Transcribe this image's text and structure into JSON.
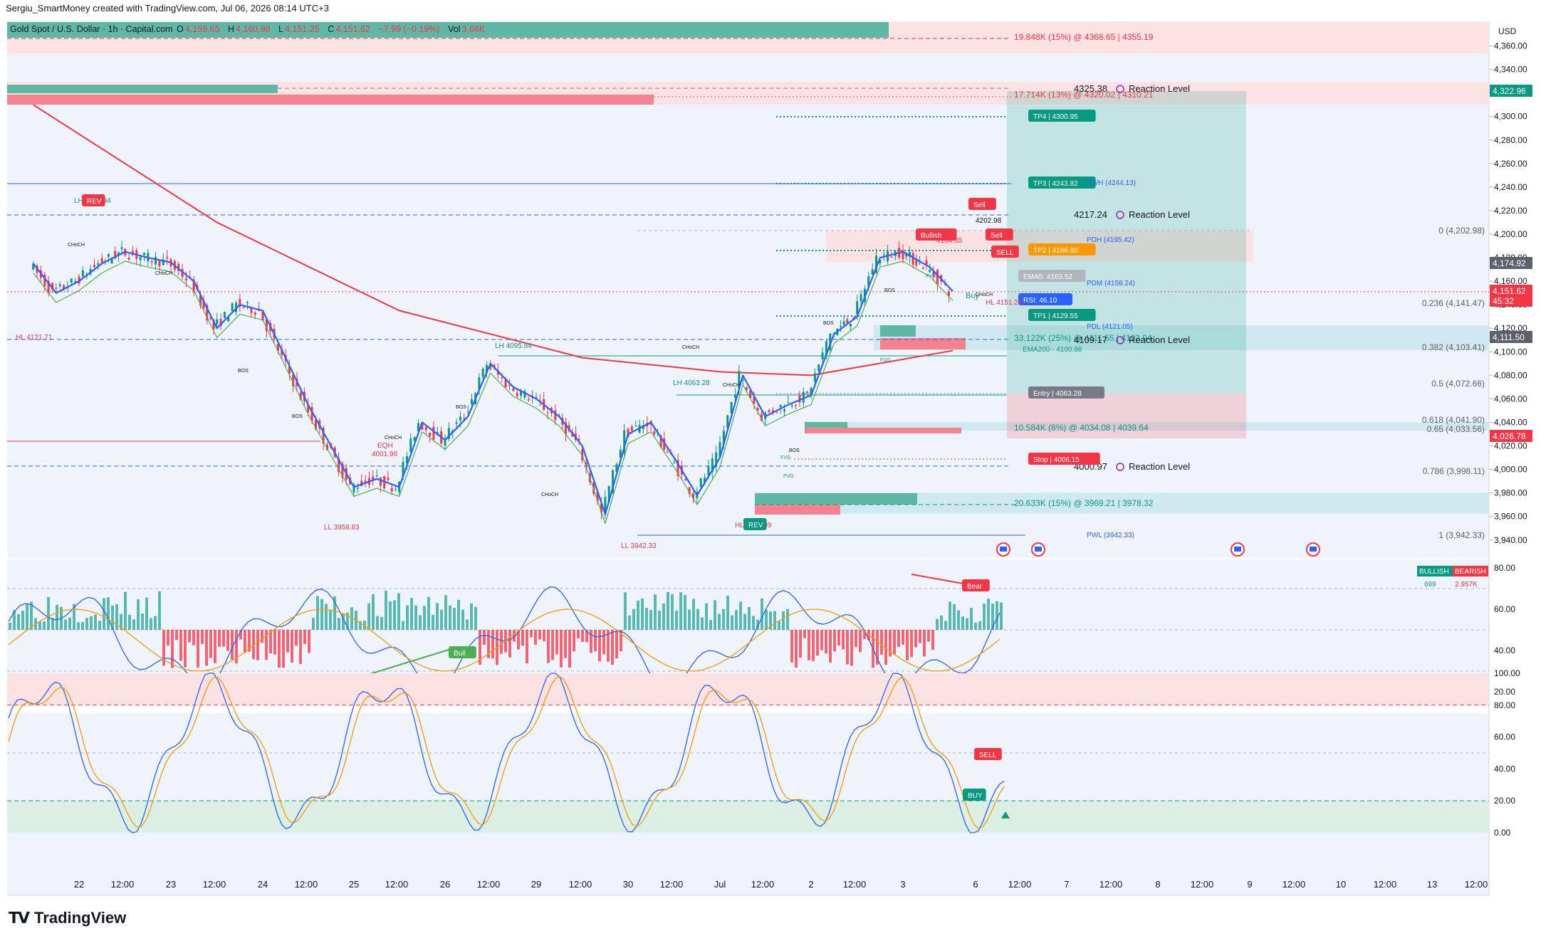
{
  "header": {
    "credit": "Sergiu_SmartMoney created with TradingView.com, Jul 06, 2026 08:14 UTC+3",
    "symbol": "Gold Spot / U.S. Dollar · 1h · Capital.com",
    "open_label": "O",
    "open": "4,159.65",
    "high_label": "H",
    "high": "4,160.98",
    "low_label": "L",
    "low": "4,151.25",
    "close_label": "C",
    "close": "4,151.62",
    "change": "−7.99 (−0.19%)",
    "vol_label": "Vol",
    "vol": "3.66K"
  },
  "brand": {
    "name": "TradingView",
    "logo": "TV"
  },
  "price_axis": {
    "currency": "USD",
    "ticks": [
      "4,360.00",
      "4,340.00",
      "4,320.00",
      "4,300.00",
      "4,280.00",
      "4,260.00",
      "4,240.00",
      "4,220.00",
      "4,200.00",
      "4,180.00",
      "4,160.00",
      "4,140.00",
      "4,120.00",
      "4,100.00",
      "4,080.00",
      "4,060.00",
      "4,040.00",
      "4,020.00",
      "4,000.00",
      "3,980.00",
      "3,960.00",
      "3,940.00"
    ],
    "tags": [
      {
        "label": "4,322.96",
        "color": "#089981"
      },
      {
        "label": "4,174.92",
        "color": "#5d606b"
      },
      {
        "label": "4,151.62",
        "color": "#f23645"
      },
      {
        "label": "45:32",
        "color": "#f23645"
      },
      {
        "label": "4,111.50",
        "color": "#5d606b"
      },
      {
        "label": "4,026.78",
        "color": "#f23645"
      }
    ]
  },
  "time_axis": [
    "22",
    "12:00",
    "23",
    "12:00",
    "24",
    "12:00",
    "25",
    "12:00",
    "26",
    "12:00",
    "29",
    "12:00",
    "30",
    "12:00",
    "Jul",
    "12:00",
    "2",
    "12:00",
    "3",
    "6",
    "12:00",
    "7",
    "12:00",
    "8",
    "12:00",
    "9",
    "12:00",
    "10",
    "12:00",
    "13",
    "12:00"
  ],
  "levels": {
    "volume_zone_top": "19.848K (15%) @ 4368.65 | 4355.19",
    "volume_zone_2": "17.714K (13%) @ 4320.02 | 4310.21",
    "volume_zone_3": "33.122K (25%) @ 4111.55 | 4123.94",
    "volume_zone_4": "10.584K (8%) @ 4034.08 | 4039.64",
    "volume_zone_5": "20.633K (15%) @ 3969.21 | 3978.32",
    "reaction_1": "4325.38",
    "reaction_2": "4217.24",
    "reaction_3": "4109.17",
    "reaction_4": "4000.97",
    "reaction_label": "Reaction Level",
    "tp4": "TP4 | 4300.95",
    "tp3": "TP3 | 4243.82",
    "tp2": "TP2 | 4186.80",
    "tp1": "TP1 | 4129.55",
    "entry": "Entry | 4063.28",
    "stop": "Stop | 4006.15",
    "pwh": "PWH (4244.13)",
    "pdh": "PDH (4195.42)",
    "pdm": "PDM (4158.24)",
    "pdl": "PDL (4121.05)",
    "pwl": "PWL (3942.33)",
    "ema5": "EMA5: 4163.52",
    "ema200": "EMA200 - 4100.98",
    "rsi": "RSI: 46.10",
    "fib": [
      "0 (4,202.98)",
      "0.236 (4,141.47)",
      "0.382 (4,103.41)",
      "0.5 (4,072.66)",
      "0.618 (4,041.90)",
      "0.65 (4,033.56)",
      "0.786 (3,998.11)",
      "1 (3,942.33)"
    ]
  },
  "annotations": {
    "lh_top": "LH 4183.94",
    "hl_left": "HL 4121.71",
    "eqh_left": "EQH",
    "eqh_left_val": "4001.96",
    "ll_1": "LL 3958.83",
    "lh_mid": "LH 4095.84",
    "ll_2": "LL 3942.33",
    "lh_2": "LH 4063.28",
    "hl_bot": "HL 3969.09",
    "hl_right": "HL 4151.29",
    "eqh_right": "EQH",
    "eqh_right_val": "4184.35",
    "high_right": "4202.98",
    "sell": "Sell",
    "sell_big": "SELL",
    "buy": "Buy",
    "bullish": "Bullish",
    "rev": "REV",
    "choch": "CHoCH",
    "bos": "BOS",
    "fvg": "FVG"
  },
  "osc1": {
    "ticks": [
      "80.00",
      "60.00",
      "40.00",
      "20.00"
    ],
    "legend_bull": "BULLISH",
    "legend_bear": "BEARISH",
    "bull_val": "699",
    "bear_val": "2.957K",
    "bull_tag": "Bull",
    "bear_tag": "Bear"
  },
  "osc2": {
    "ticks": [
      "100.00",
      "80.00",
      "60.00",
      "40.00",
      "20.00",
      "0.00"
    ],
    "sell_tag": "SELL",
    "buy_tag": "BUY"
  },
  "colors": {
    "up": "#089981",
    "down": "#f23645",
    "blue": "#2962ff",
    "ema200": "#f23645",
    "ema_green": "#4caf50"
  },
  "chart_data": {
    "type": "candlestick",
    "title": "Gold Spot / U.S. Dollar · 1h · Capital.com",
    "ylabel": "USD",
    "ylim": [
      3930,
      4370
    ],
    "x_categories": [
      "Jun 22",
      "Jun 23",
      "Jun 24",
      "Jun 25",
      "Jun 26",
      "Jun 29",
      "Jun 30",
      "Jul 1",
      "Jul 2",
      "Jul 3",
      "Jul 6"
    ],
    "close_path": [
      {
        "x": "Jun 22 00:00",
        "y": 4175
      },
      {
        "x": "Jun 22 06:00",
        "y": 4150
      },
      {
        "x": "Jun 22 12:00",
        "y": 4160
      },
      {
        "x": "Jun 22 18:00",
        "y": 4175
      },
      {
        "x": "Jun 23 00:00",
        "y": 4185
      },
      {
        "x": "Jun 23 06:00",
        "y": 4180
      },
      {
        "x": "Jun 23 12:00",
        "y": 4176
      },
      {
        "x": "Jun 23 18:00",
        "y": 4160
      },
      {
        "x": "Jun 24 00:00",
        "y": 4120
      },
      {
        "x": "Jun 24 06:00",
        "y": 4140
      },
      {
        "x": "Jun 24 12:00",
        "y": 4135
      },
      {
        "x": "Jun 24 18:00",
        "y": 4095
      },
      {
        "x": "Jun 25 00:00",
        "y": 4055
      },
      {
        "x": "Jun 25 06:00",
        "y": 4020
      },
      {
        "x": "Jun 25 12:00",
        "y": 3985
      },
      {
        "x": "Jun 25 18:00",
        "y": 3992
      },
      {
        "x": "Jun 26 00:00",
        "y": 3985
      },
      {
        "x": "Jun 26 06:00",
        "y": 4040
      },
      {
        "x": "Jun 26 12:00",
        "y": 4025
      },
      {
        "x": "Jun 26 18:00",
        "y": 4045
      },
      {
        "x": "Jun 29 00:00",
        "y": 4090
      },
      {
        "x": "Jun 29 06:00",
        "y": 4070
      },
      {
        "x": "Jun 29 12:00",
        "y": 4060
      },
      {
        "x": "Jun 29 18:00",
        "y": 4045
      },
      {
        "x": "Jun 30 00:00",
        "y": 4020
      },
      {
        "x": "Jun 30 06:00",
        "y": 3962
      },
      {
        "x": "Jun 30 12:00",
        "y": 4030
      },
      {
        "x": "Jun 30 18:00",
        "y": 4040
      },
      {
        "x": "Jul 1 00:00",
        "y": 4010
      },
      {
        "x": "Jul 1 06:00",
        "y": 3978
      },
      {
        "x": "Jul 1 12:00",
        "y": 4010
      },
      {
        "x": "Jul 1 18:00",
        "y": 4080
      },
      {
        "x": "Jul 2 00:00",
        "y": 4045
      },
      {
        "x": "Jul 2 06:00",
        "y": 4055
      },
      {
        "x": "Jul 2 12:00",
        "y": 4063
      },
      {
        "x": "Jul 2 18:00",
        "y": 4115
      },
      {
        "x": "Jul 3 00:00",
        "y": 4130
      },
      {
        "x": "Jul 3 06:00",
        "y": 4180
      },
      {
        "x": "Jul 3 12:00",
        "y": 4185
      },
      {
        "x": "Jul 6 00:00",
        "y": 4172
      },
      {
        "x": "Jul 6 06:00",
        "y": 4151.62
      }
    ],
    "series": [
      {
        "name": "EMA200",
        "values": [
          {
            "x": "Jun 22 00:00",
            "y": 4310
          },
          {
            "x": "Jun 24 00:00",
            "y": 4210
          },
          {
            "x": "Jun 26 00:00",
            "y": 4135
          },
          {
            "x": "Jun 30 00:00",
            "y": 4095
          },
          {
            "x": "Jul 1 12:00",
            "y": 4083
          },
          {
            "x": "Jul 2 12:00",
            "y": 4080
          },
          {
            "x": "Jul 6 06:00",
            "y": 4100.98
          }
        ]
      }
    ]
  }
}
